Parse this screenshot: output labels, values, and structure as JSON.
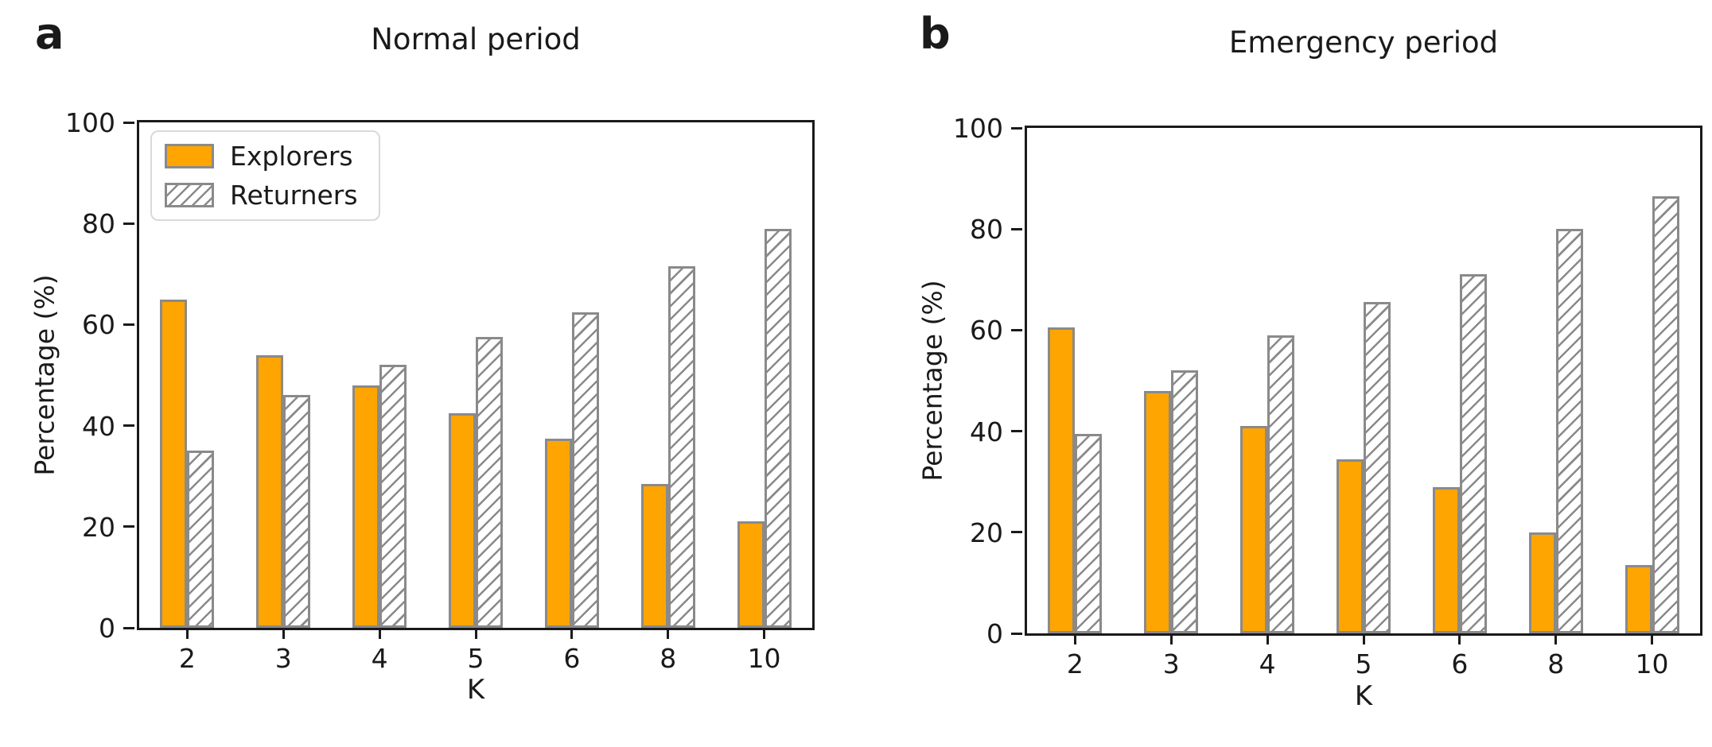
{
  "figure": {
    "background": "#ffffff",
    "panels": [
      {
        "panel_label": "a",
        "title": "Normal period"
      },
      {
        "panel_label": "b",
        "title": "Emergency period"
      }
    ],
    "legend": {
      "items": [
        {
          "label": "Explorers",
          "swatch": "solid-orange"
        },
        {
          "label": "Returners",
          "swatch": "gray-diagonal-hatch"
        }
      ],
      "position": "upper-left-of-panel-a"
    }
  },
  "colors": {
    "explorers_fill": "#ffa502",
    "bar_edge": "#8a8a8a",
    "hatch_line": "#8a8a8a",
    "spine": "#1a1a1a",
    "legend_border": "#d9d9d9",
    "text": "#1a1a1a"
  },
  "chart_data": [
    {
      "type": "bar",
      "panel_label": "a",
      "title": "Normal period",
      "xlabel": "K",
      "ylabel": "Percentage (%)",
      "ylim": [
        0,
        100
      ],
      "yticks": [
        0,
        20,
        40,
        60,
        80,
        100
      ],
      "categories": [
        "2",
        "3",
        "4",
        "5",
        "6",
        "8",
        "10"
      ],
      "series": [
        {
          "name": "Explorers",
          "values": [
            65,
            54,
            48,
            42.5,
            37.5,
            28.5,
            21
          ]
        },
        {
          "name": "Returners",
          "values": [
            35,
            46,
            52,
            57.5,
            62.5,
            71.5,
            79
          ]
        }
      ],
      "legend_position": "upper left",
      "grid": false
    },
    {
      "type": "bar",
      "panel_label": "b",
      "title": "Emergency period",
      "xlabel": "K",
      "ylabel": "Percentage (%)",
      "ylim": [
        0,
        100
      ],
      "yticks": [
        0,
        20,
        40,
        60,
        80,
        100
      ],
      "categories": [
        "2",
        "3",
        "4",
        "5",
        "6",
        "8",
        "10"
      ],
      "series": [
        {
          "name": "Explorers",
          "values": [
            60.5,
            48,
            41,
            34.5,
            29,
            20,
            13.5
          ]
        },
        {
          "name": "Returners",
          "values": [
            39.5,
            52,
            59,
            65.5,
            71,
            80,
            86.5
          ]
        }
      ],
      "legend_position": "none",
      "grid": false
    }
  ]
}
